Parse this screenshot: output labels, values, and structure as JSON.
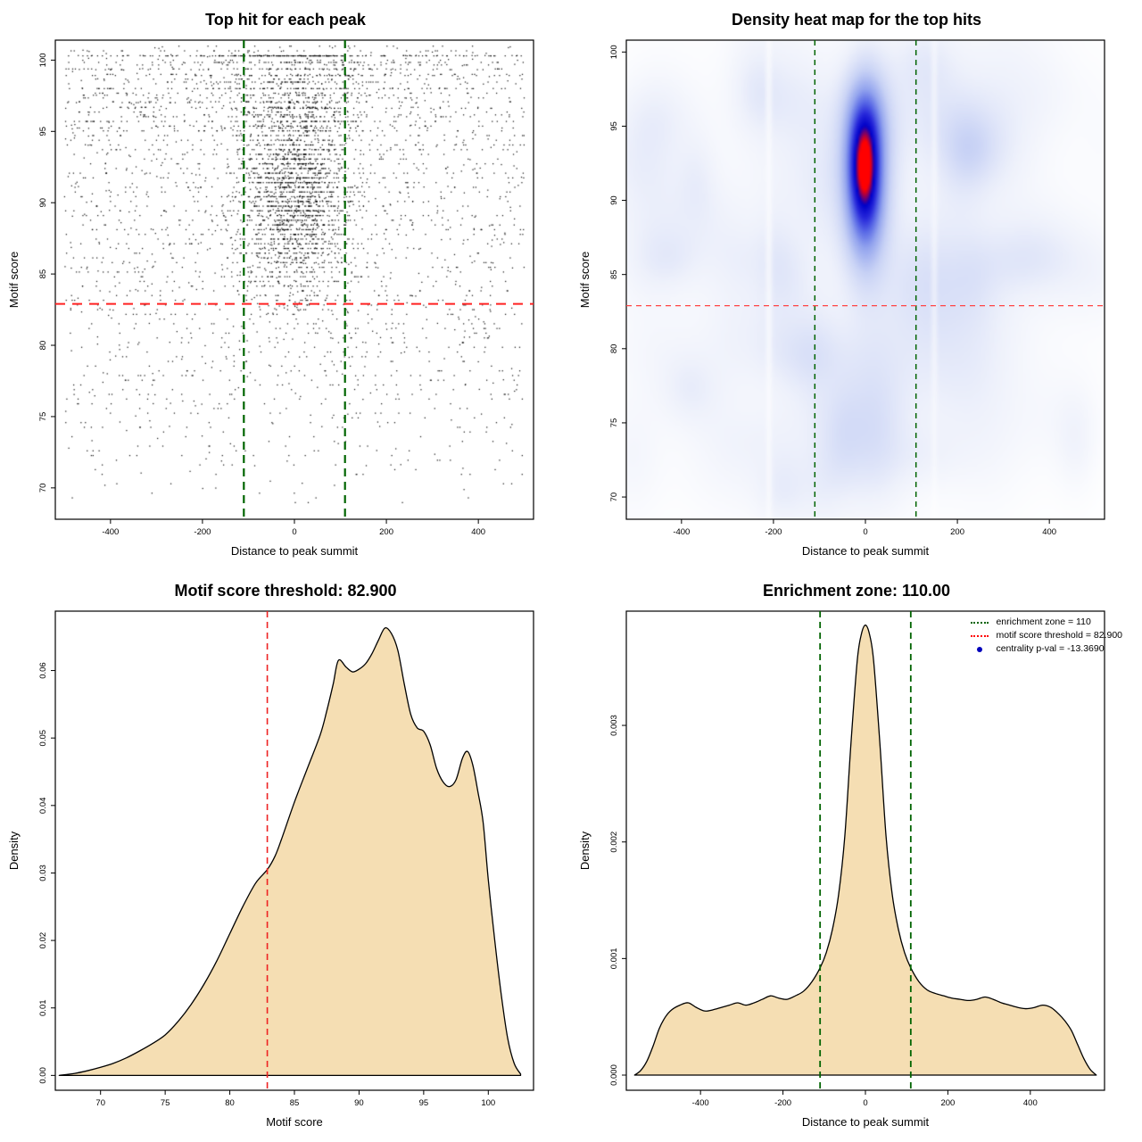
{
  "figure": {
    "background": "#ffffff"
  },
  "chart_data": [
    {
      "type": "scatter",
      "title": "Top hit for each peak",
      "xlabel": "Distance to peak summit",
      "ylabel": "Motif score",
      "xlim": [
        -520,
        520
      ],
      "ylim": [
        67.8,
        101.4
      ],
      "xticks": [
        -400,
        -200,
        0,
        200,
        400
      ],
      "xtick_labels": [
        "-400",
        "-200",
        "0",
        "200",
        "400"
      ],
      "yticks": [
        70,
        75,
        80,
        85,
        90,
        95,
        100
      ],
      "ytick_labels": [
        "70",
        "75",
        "80",
        "85",
        "90",
        "95",
        "100"
      ],
      "hline": 82.9,
      "vlines": [
        -110,
        110
      ],
      "colors": {
        "points": "#000000",
        "hline": "#ff2222",
        "vline": "#006400"
      },
      "annotations": {
        "motif_score_threshold": 82.9,
        "enrichment_zone": [
          -110,
          110
        ]
      },
      "generation": {
        "seed": 1337,
        "background": {
          "n": 2400,
          "y_power": 0.55
        },
        "central": {
          "n": 1950,
          "x_sd": 62,
          "y_mean": 90.6,
          "y_sd": 3.9
        },
        "bands": {
          "n": 850,
          "top": 100.3,
          "step": 0.46,
          "count": 12,
          "x_center_frac": 0.55,
          "x_sd": 95
        },
        "quantize_step": 0.33,
        "quantize_frac": 0.72
      }
    },
    {
      "type": "heatmap",
      "title": "Density heat map for the top hits",
      "xlabel": "Distance to peak summit",
      "ylabel": "Motif score",
      "xlim": [
        -520,
        520
      ],
      "ylim": [
        68.5,
        100.8
      ],
      "xticks": [
        -400,
        -200,
        0,
        200,
        400
      ],
      "xtick_labels": [
        "-400",
        "-200",
        "0",
        "200",
        "400"
      ],
      "yticks": [
        70,
        75,
        80,
        85,
        90,
        95,
        100
      ],
      "ytick_labels": [
        "70",
        "75",
        "80",
        "85",
        "90",
        "95",
        "100"
      ],
      "hline": 82.9,
      "vlines": [
        -110,
        110
      ],
      "colors": {
        "hline": "#ff4444",
        "vline": "#006400"
      },
      "hotspot": {
        "x": 0,
        "y": 92.3
      },
      "field": {
        "seed": 99,
        "noise_blobs": 70,
        "kernels": [
          {
            "amp": 0.12,
            "x": 0,
            "y": 88,
            "sx": 330,
            "sy": 11
          },
          {
            "amp": 0.78,
            "x": 0,
            "y": 92.3,
            "sx": 34,
            "sy": 4.3
          },
          {
            "amp": 0.55,
            "x": 0,
            "y": 89.8,
            "sx": 30,
            "sy": 3.0
          },
          {
            "amp": 0.35,
            "x": 0,
            "y": 95.5,
            "sx": 30,
            "sy": 2.2
          },
          {
            "amp": 0.42,
            "x": -3,
            "y": 92.4,
            "sx": 20,
            "sy": 2.0
          }
        ],
        "white_stripes": [
          {
            "x": -210,
            "sd": 5,
            "depth": 0.55
          },
          {
            "x": 150,
            "sd": 5,
            "depth": 0.4
          }
        ],
        "norm": 1.85,
        "colormap": [
          [
            0,
            "#ffffff"
          ],
          [
            0.12,
            "#eef1fb"
          ],
          [
            0.3,
            "#c8d2f5"
          ],
          [
            0.48,
            "#93a4ee"
          ],
          [
            0.62,
            "#5a6ae6"
          ],
          [
            0.75,
            "#2627da"
          ],
          [
            0.87,
            "#0000c8"
          ],
          [
            1,
            "#ff0000"
          ]
        ]
      }
    },
    {
      "type": "area",
      "title": "Motif score threshold: 82.900",
      "xlabel": "Motif score",
      "ylabel": "Density",
      "xlim": [
        66.5,
        103.5
      ],
      "ylim": [
        -0.0022,
        0.0688
      ],
      "xticks": [
        70,
        75,
        80,
        85,
        90,
        95,
        100
      ],
      "xtick_labels": [
        "70",
        "75",
        "80",
        "85",
        "90",
        "95",
        "100"
      ],
      "yticks": [
        0,
        0.01,
        0.02,
        0.03,
        0.04,
        0.05,
        0.06
      ],
      "ytick_labels": [
        "0.00",
        "0.01",
        "0.02",
        "0.03",
        "0.04",
        "0.05",
        "0.06"
      ],
      "vline": 82.9,
      "fill": "#f5deb3",
      "colors": {
        "vline": "#ee2222",
        "stroke": "#000000"
      },
      "curve": {
        "x": [
          66.8,
          68,
          69,
          70,
          71,
          72,
          73,
          74,
          75,
          76,
          77,
          78,
          79,
          80,
          81,
          82,
          82.9,
          83.5,
          84,
          85,
          86,
          87,
          87.5,
          88,
          88.4,
          89,
          89.5,
          90,
          90.5,
          91,
          91.5,
          92,
          92.5,
          93,
          93.5,
          94,
          94.5,
          95,
          95.5,
          96,
          96.5,
          97,
          97.5,
          98,
          98.4,
          98.8,
          99.2,
          99.6,
          100,
          100.5,
          101,
          101.5,
          102,
          102.5
        ],
        "y": [
          0,
          0.0003,
          0.0007,
          0.0012,
          0.0018,
          0.0026,
          0.0036,
          0.0047,
          0.006,
          0.008,
          0.0105,
          0.0135,
          0.017,
          0.021,
          0.025,
          0.0285,
          0.0305,
          0.0325,
          0.035,
          0.0405,
          0.0455,
          0.0505,
          0.054,
          0.058,
          0.0615,
          0.0605,
          0.0598,
          0.0602,
          0.061,
          0.0625,
          0.0645,
          0.0663,
          0.0655,
          0.063,
          0.058,
          0.0535,
          0.0515,
          0.051,
          0.049,
          0.0455,
          0.0435,
          0.0428,
          0.0438,
          0.047,
          0.048,
          0.046,
          0.042,
          0.0375,
          0.029,
          0.02,
          0.012,
          0.0055,
          0.0018,
          0.0002
        ]
      }
    },
    {
      "type": "area",
      "title": "Enrichment zone: 110.00",
      "xlabel": "Distance to peak summit",
      "ylabel": "Density",
      "xlim": [
        -580,
        580
      ],
      "ylim": [
        -0.00013,
        0.00398
      ],
      "xticks": [
        -400,
        -200,
        0,
        200,
        400
      ],
      "xtick_labels": [
        "-400",
        "-200",
        "0",
        "200",
        "400"
      ],
      "yticks": [
        0,
        0.001,
        0.002,
        0.003
      ],
      "ytick_labels": [
        "0.000",
        "0.001",
        "0.002",
        "0.003"
      ],
      "vlines": [
        -110,
        110
      ],
      "fill": "#f5deb3",
      "colors": {
        "vline": "#006400",
        "stroke": "#000000"
      },
      "legend": [
        {
          "label": "enrichment zone = 110",
          "color": "#006400",
          "marker": "dotted-line"
        },
        {
          "label": "motif score threshold = 82.900",
          "color": "#ff0000",
          "marker": "dotted-line"
        },
        {
          "label": "centrality p-val = -13.3690",
          "color": "#0000bb",
          "marker": "point"
        }
      ],
      "curve": {
        "x": [
          -560,
          -545,
          -530,
          -515,
          -500,
          -485,
          -470,
          -450,
          -430,
          -410,
          -390,
          -370,
          -350,
          -330,
          -310,
          -290,
          -270,
          -250,
          -230,
          -210,
          -190,
          -170,
          -150,
          -130,
          -110,
          -95,
          -80,
          -65,
          -50,
          -35,
          -20,
          -10,
          0,
          10,
          20,
          35,
          50,
          65,
          80,
          95,
          110,
          130,
          150,
          170,
          190,
          210,
          230,
          250,
          270,
          290,
          310,
          330,
          350,
          370,
          390,
          410,
          430,
          450,
          470,
          485,
          500,
          515,
          530,
          545,
          560
        ],
        "y": [
          0,
          4e-05,
          0.00012,
          0.00025,
          0.0004,
          0.0005,
          0.00056,
          0.0006,
          0.00062,
          0.00058,
          0.00055,
          0.00056,
          0.00058,
          0.0006,
          0.00062,
          0.0006,
          0.00062,
          0.00065,
          0.00068,
          0.00066,
          0.00065,
          0.00068,
          0.00072,
          0.0008,
          0.00092,
          0.00105,
          0.00125,
          0.00155,
          0.00205,
          0.00285,
          0.00355,
          0.00378,
          0.00386,
          0.00378,
          0.00355,
          0.00285,
          0.00205,
          0.00155,
          0.00125,
          0.00105,
          0.00092,
          0.0008,
          0.00073,
          0.0007,
          0.00068,
          0.00066,
          0.00065,
          0.00064,
          0.00065,
          0.00067,
          0.00065,
          0.00062,
          0.0006,
          0.00058,
          0.00057,
          0.00058,
          0.0006,
          0.00058,
          0.00052,
          0.00046,
          0.00038,
          0.00026,
          0.00014,
          5e-05,
          0
        ]
      }
    }
  ]
}
